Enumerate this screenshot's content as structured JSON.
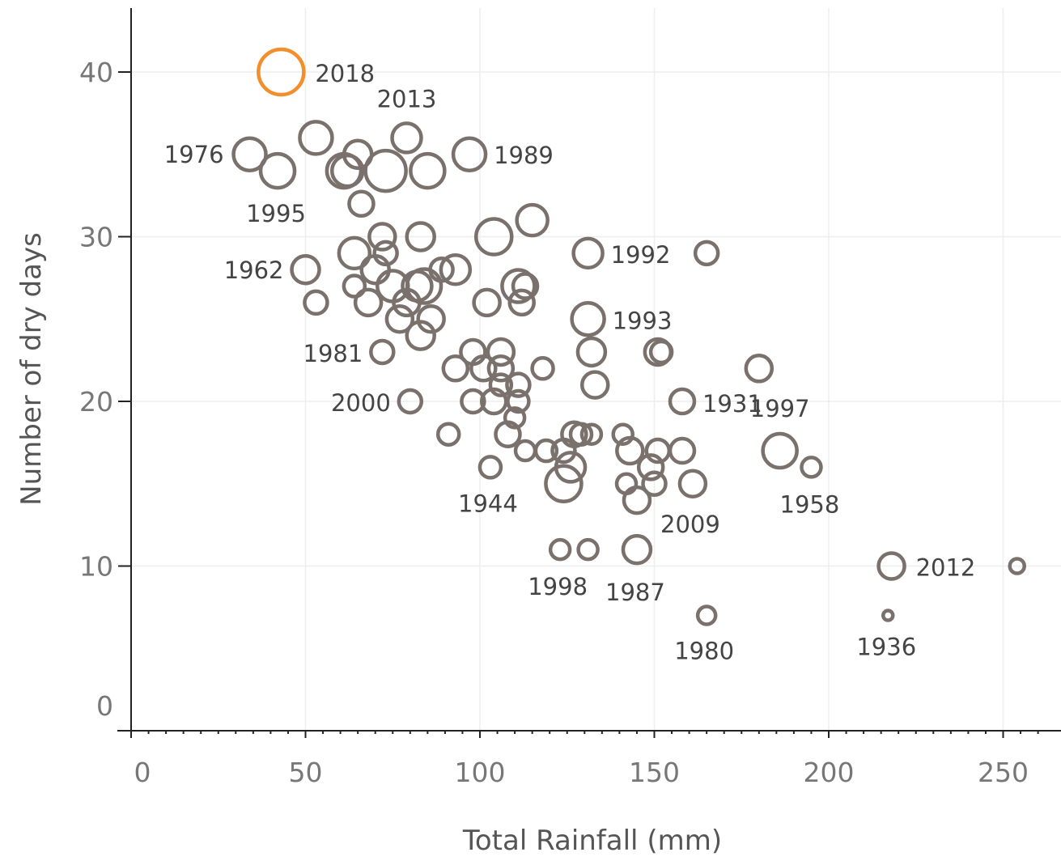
{
  "chart_data": {
    "type": "scatter",
    "title": "",
    "xlabel": "Total Rainfall (mm)",
    "ylabel": "Number of dry days",
    "xlim": [
      0,
      260
    ],
    "ylim": [
      -1.5,
      44
    ],
    "x_ticks": [
      0,
      50,
      100,
      150,
      200,
      250
    ],
    "y_ticks": [
      0,
      10,
      20,
      30,
      40
    ],
    "grid": true,
    "legend": "none",
    "colors": {
      "default": "#7a706c",
      "highlight": "#f28e2b"
    },
    "size_note": "bubble size varies per point; no size legend shown",
    "points": [
      {
        "x": 43,
        "y": 40,
        "r": 28,
        "label": "2018",
        "highlight": true
      },
      {
        "x": 34,
        "y": 35,
        "r": 20,
        "label": "1976"
      },
      {
        "x": 42,
        "y": 34,
        "r": 21,
        "label": "1995"
      },
      {
        "x": 53,
        "y": 36,
        "r": 20
      },
      {
        "x": 61,
        "y": 34,
        "r": 21
      },
      {
        "x": 62,
        "y": 34,
        "r": 19
      },
      {
        "x": 65,
        "y": 35,
        "r": 17
      },
      {
        "x": 66,
        "y": 32,
        "r": 15
      },
      {
        "x": 73,
        "y": 34,
        "r": 25
      },
      {
        "x": 79,
        "y": 36,
        "r": 18,
        "label": "2013"
      },
      {
        "x": 85,
        "y": 34,
        "r": 21
      },
      {
        "x": 97,
        "y": 35,
        "r": 20,
        "label": "1989"
      },
      {
        "x": 115,
        "y": 31,
        "r": 19
      },
      {
        "x": 104,
        "y": 30,
        "r": 22
      },
      {
        "x": 72,
        "y": 30,
        "r": 16
      },
      {
        "x": 83,
        "y": 30,
        "r": 17
      },
      {
        "x": 73,
        "y": 29,
        "r": 14
      },
      {
        "x": 64,
        "y": 29,
        "r": 19
      },
      {
        "x": 50,
        "y": 28,
        "r": 17,
        "label": "1962"
      },
      {
        "x": 70,
        "y": 28,
        "r": 17
      },
      {
        "x": 89,
        "y": 28,
        "r": 14
      },
      {
        "x": 93,
        "y": 28,
        "r": 18
      },
      {
        "x": 64,
        "y": 27,
        "r": 13
      },
      {
        "x": 75,
        "y": 27,
        "r": 19
      },
      {
        "x": 82,
        "y": 27,
        "r": 18
      },
      {
        "x": 84,
        "y": 27,
        "r": 21
      },
      {
        "x": 79,
        "y": 26,
        "r": 16
      },
      {
        "x": 53,
        "y": 26,
        "r": 14
      },
      {
        "x": 68,
        "y": 26,
        "r": 16
      },
      {
        "x": 102,
        "y": 26,
        "r": 16
      },
      {
        "x": 111,
        "y": 27,
        "r": 20
      },
      {
        "x": 113,
        "y": 27,
        "r": 15
      },
      {
        "x": 112,
        "y": 26,
        "r": 15
      },
      {
        "x": 77,
        "y": 25,
        "r": 16
      },
      {
        "x": 86,
        "y": 25,
        "r": 16
      },
      {
        "x": 83,
        "y": 24,
        "r": 17
      },
      {
        "x": 72,
        "y": 23,
        "r": 14,
        "label": "1981"
      },
      {
        "x": 131,
        "y": 29,
        "r": 18,
        "label": "1992"
      },
      {
        "x": 165,
        "y": 29,
        "r": 14
      },
      {
        "x": 131,
        "y": 25,
        "r": 20,
        "label": "1993"
      },
      {
        "x": 132,
        "y": 23,
        "r": 17
      },
      {
        "x": 151,
        "y": 23,
        "r": 16
      },
      {
        "x": 152,
        "y": 23,
        "r": 13
      },
      {
        "x": 133,
        "y": 21,
        "r": 16
      },
      {
        "x": 180,
        "y": 22,
        "r": 16
      },
      {
        "x": 98,
        "y": 23,
        "r": 15
      },
      {
        "x": 106,
        "y": 23,
        "r": 16
      },
      {
        "x": 93,
        "y": 22,
        "r": 15
      },
      {
        "x": 101,
        "y": 22,
        "r": 15
      },
      {
        "x": 106,
        "y": 22,
        "r": 15
      },
      {
        "x": 118,
        "y": 22,
        "r": 13
      },
      {
        "x": 106,
        "y": 21,
        "r": 13
      },
      {
        "x": 111,
        "y": 21,
        "r": 14
      },
      {
        "x": 80,
        "y": 20,
        "r": 14,
        "label": "2000"
      },
      {
        "x": 98,
        "y": 20,
        "r": 14
      },
      {
        "x": 104,
        "y": 20,
        "r": 15
      },
      {
        "x": 111,
        "y": 20,
        "r": 13
      },
      {
        "x": 158,
        "y": 20,
        "r": 15,
        "label": "1931"
      },
      {
        "x": 110,
        "y": 19,
        "r": 12
      },
      {
        "x": 91,
        "y": 18,
        "r": 13
      },
      {
        "x": 108,
        "y": 18,
        "r": 15
      },
      {
        "x": 127,
        "y": 18,
        "r": 15
      },
      {
        "x": 129,
        "y": 18,
        "r": 13
      },
      {
        "x": 132,
        "y": 18,
        "r": 12
      },
      {
        "x": 141,
        "y": 18,
        "r": 12
      },
      {
        "x": 113,
        "y": 17,
        "r": 12
      },
      {
        "x": 119,
        "y": 17,
        "r": 13
      },
      {
        "x": 124,
        "y": 17,
        "r": 14
      },
      {
        "x": 143,
        "y": 17,
        "r": 16
      },
      {
        "x": 151,
        "y": 17,
        "r": 14
      },
      {
        "x": 158,
        "y": 17,
        "r": 15
      },
      {
        "x": 186,
        "y": 17,
        "r": 21,
        "label": "1997"
      },
      {
        "x": 103,
        "y": 16,
        "r": 13,
        "label": "1944"
      },
      {
        "x": 126,
        "y": 16,
        "r": 18
      },
      {
        "x": 149,
        "y": 16,
        "r": 15
      },
      {
        "x": 195,
        "y": 16,
        "r": 12,
        "label": "1958"
      },
      {
        "x": 124,
        "y": 15,
        "r": 22
      },
      {
        "x": 142,
        "y": 15,
        "r": 12
      },
      {
        "x": 150,
        "y": 15,
        "r": 14
      },
      {
        "x": 161,
        "y": 15,
        "r": 16
      },
      {
        "x": 145,
        "y": 14,
        "r": 16,
        "label": "2009"
      },
      {
        "x": 123,
        "y": 11,
        "r": 12,
        "label": "1998"
      },
      {
        "x": 131,
        "y": 11,
        "r": 12
      },
      {
        "x": 145,
        "y": 11,
        "r": 17,
        "label": "1987"
      },
      {
        "x": 218,
        "y": 10,
        "r": 16,
        "label": "2012"
      },
      {
        "x": 254,
        "y": 10,
        "r": 9
      },
      {
        "x": 165,
        "y": 7,
        "r": 11,
        "label": "1980"
      },
      {
        "x": 217,
        "y": 7,
        "r": 6,
        "label": "1936"
      }
    ]
  }
}
